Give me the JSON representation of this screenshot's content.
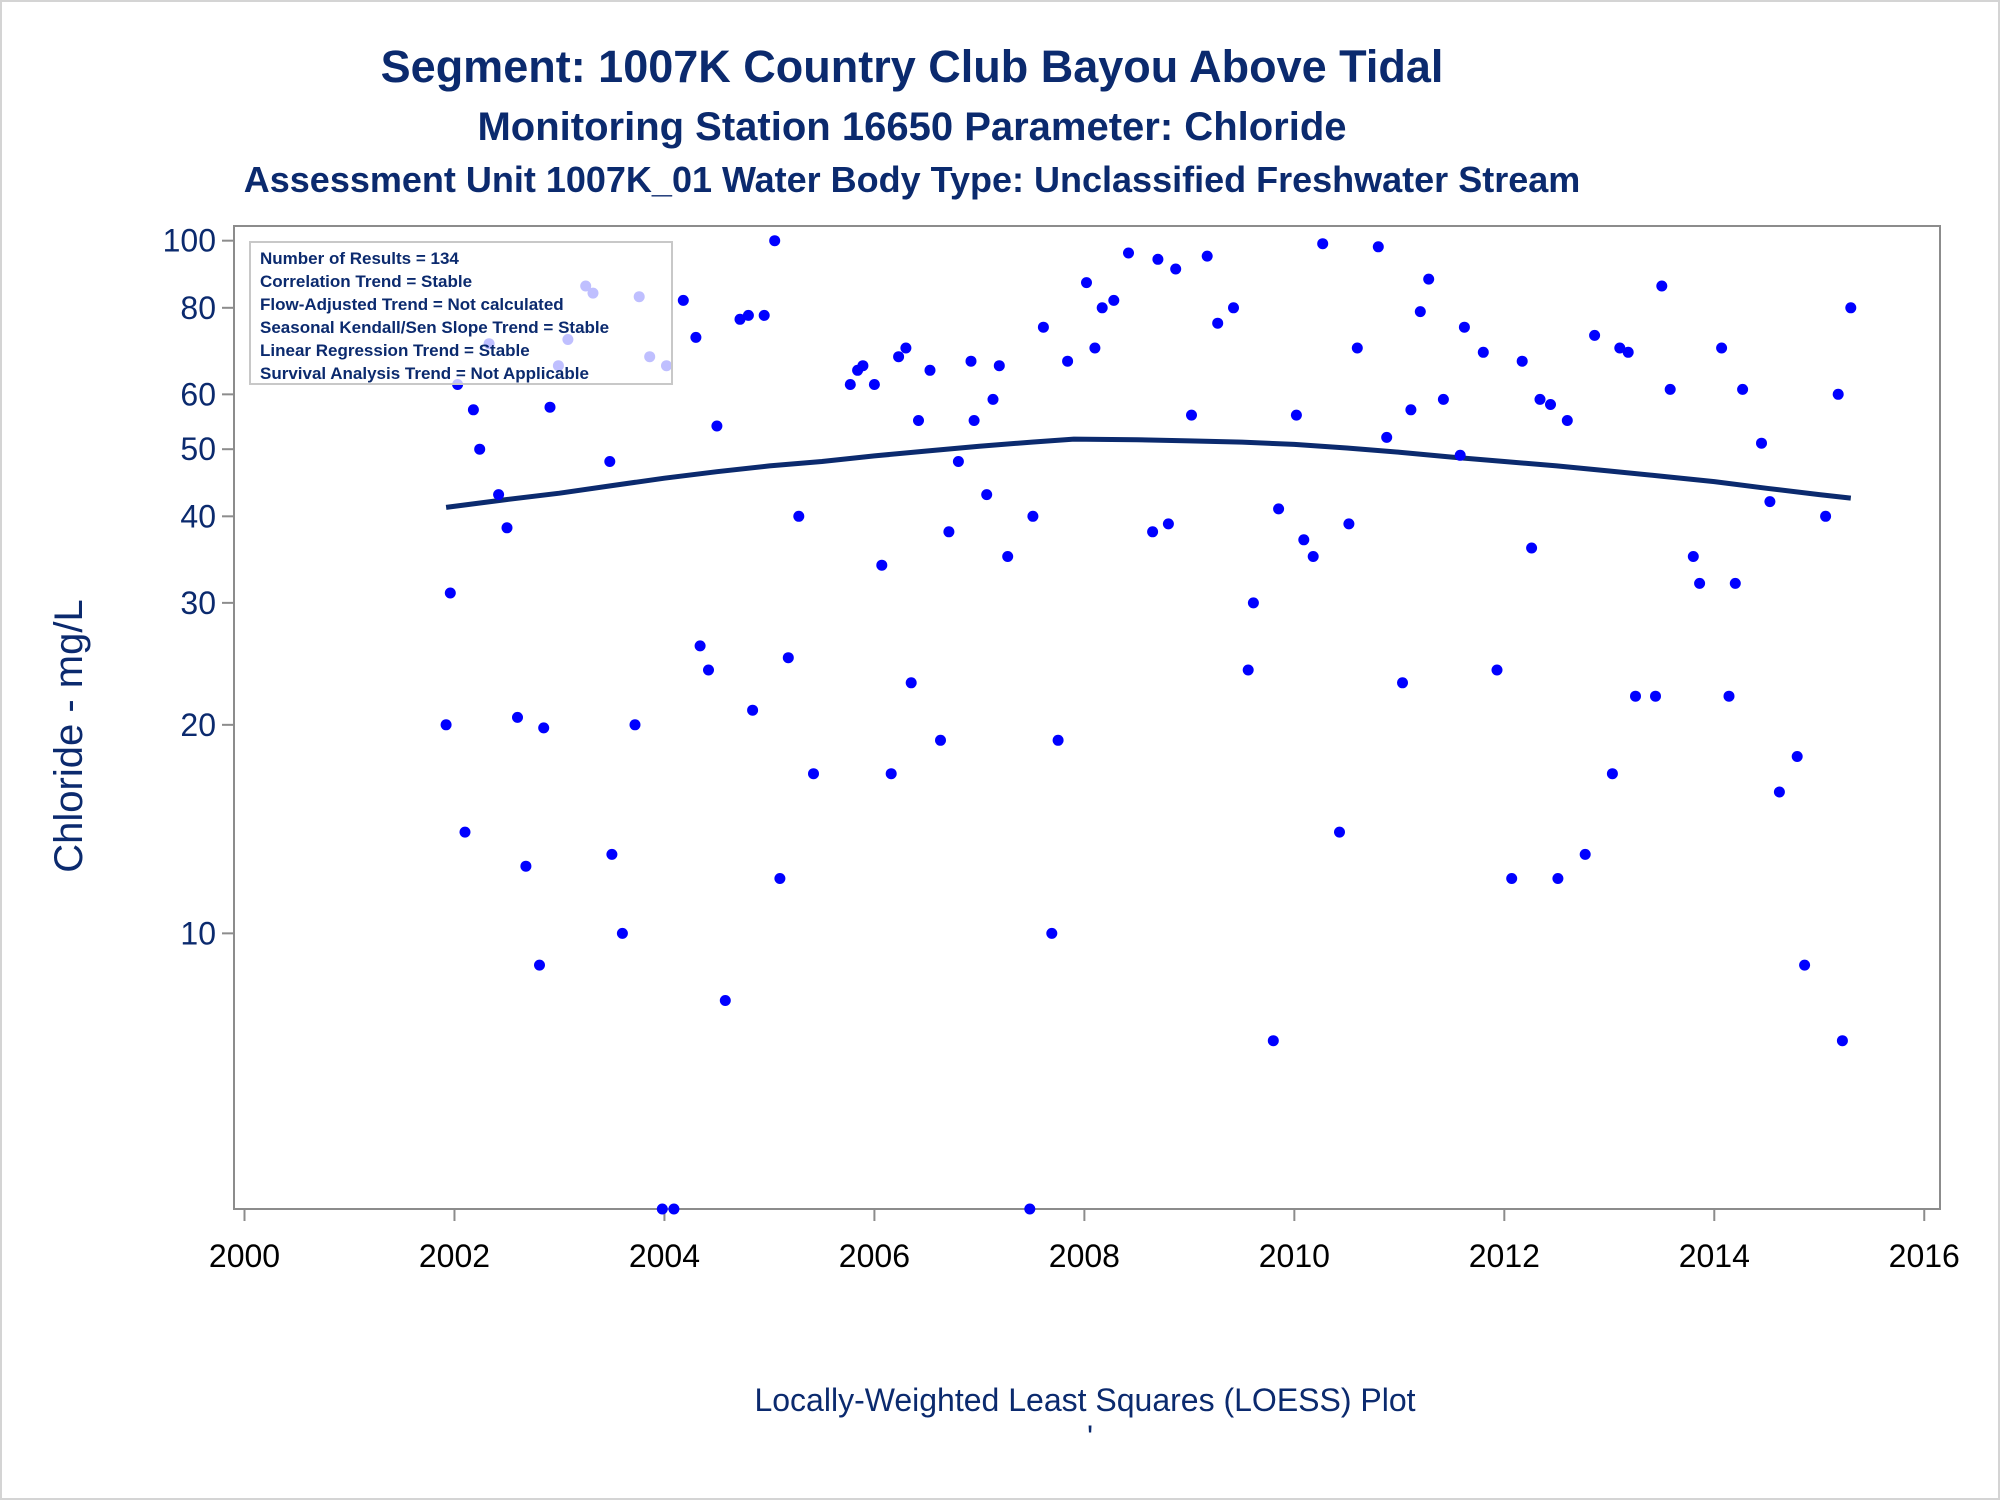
{
  "chart_data": {
    "type": "scatter",
    "title": "Segment: 1007K  Country Club Bayou Above Tidal",
    "subtitle": "Monitoring Station 16650 Parameter: Chloride",
    "subtitle2": "Assessment Unit 1007K_01   Water Body Type: Unclassified Freshwater Stream",
    "ylabel": "Chloride - mg/L",
    "xlabel": "",
    "footnote": "Locally-Weighted Least Squares (LOESS) Plot",
    "footnote_mark": "'",
    "yscale": "log",
    "ylim": [
      4,
      105
    ],
    "xlim": [
      1999.9,
      2016.15
    ],
    "x_ticks": [
      2000,
      2002,
      2004,
      2006,
      2008,
      2010,
      2012,
      2014,
      2016
    ],
    "x_tick_labels": [
      "2000",
      "2002",
      "2004",
      "2006",
      "2008",
      "2010",
      "2012",
      "2014",
      "2016"
    ],
    "y_ticks": [
      10,
      20,
      30,
      40,
      50,
      60,
      80,
      100
    ],
    "y_tick_labels": [
      "10",
      "20",
      "30",
      "40",
      "50",
      "60",
      "80",
      "100"
    ],
    "grid": false,
    "stats_box": {
      "placement": "top-left",
      "lines": [
        "Number of Results = 134",
        "Correlation Trend = Stable",
        "Flow-Adjusted Trend = Not calculated",
        "Seasonal Kendall/Sen Slope Trend = Stable",
        "Linear Regression Trend = Stable",
        "Survival Analysis Trend = Not Applicable"
      ]
    },
    "colors": {
      "points": "#0000ff",
      "trend": "#0b2a6e",
      "text": "#0b2a6e",
      "axis": "#8c8c8c"
    },
    "series": [
      {
        "kind": "points",
        "points": [
          [
            2001.92,
            20
          ],
          [
            2001.96,
            31
          ],
          [
            2002.03,
            62
          ],
          [
            2002.1,
            14
          ],
          [
            2002.18,
            57
          ],
          [
            2002.24,
            50
          ],
          [
            2002.33,
            71
          ],
          [
            2002.42,
            43
          ],
          [
            2002.5,
            38.5
          ],
          [
            2002.6,
            20.5
          ],
          [
            2002.68,
            12.5
          ],
          [
            2002.81,
            9
          ],
          [
            2002.85,
            19.8
          ],
          [
            2002.91,
            57.5
          ],
          [
            2002.99,
            66
          ],
          [
            2003.08,
            72
          ],
          [
            2003.25,
            86
          ],
          [
            2003.32,
            84
          ],
          [
            2003.48,
            48
          ],
          [
            2003.5,
            13
          ],
          [
            2003.6,
            10
          ],
          [
            2003.72,
            20
          ],
          [
            2003.76,
            83
          ],
          [
            2003.86,
            68
          ],
          [
            2003.98,
            4
          ],
          [
            2004.02,
            66
          ],
          [
            2004.09,
            4
          ],
          [
            2004.18,
            82
          ],
          [
            2004.3,
            72.5
          ],
          [
            2004.34,
            26
          ],
          [
            2004.42,
            24
          ],
          [
            2004.5,
            54
          ],
          [
            2004.58,
            8
          ],
          [
            2004.72,
            77
          ],
          [
            2004.8,
            78
          ],
          [
            2004.84,
            21
          ],
          [
            2004.95,
            78
          ],
          [
            2005.05,
            100
          ],
          [
            2005.1,
            12
          ],
          [
            2005.18,
            25
          ],
          [
            2005.28,
            40
          ],
          [
            2005.42,
            17
          ],
          [
            2005.77,
            62
          ],
          [
            2005.84,
            65
          ],
          [
            2005.89,
            66
          ],
          [
            2006.0,
            62
          ],
          [
            2006.07,
            34
          ],
          [
            2006.16,
            17
          ],
          [
            2006.23,
            68
          ],
          [
            2006.3,
            70
          ],
          [
            2006.35,
            23
          ],
          [
            2006.42,
            55
          ],
          [
            2006.53,
            65
          ],
          [
            2006.63,
            19
          ],
          [
            2006.71,
            38
          ],
          [
            2006.8,
            48
          ],
          [
            2006.92,
            67
          ],
          [
            2006.95,
            55
          ],
          [
            2007.07,
            43
          ],
          [
            2007.13,
            59
          ],
          [
            2007.19,
            66
          ],
          [
            2007.27,
            35
          ],
          [
            2007.48,
            4
          ],
          [
            2007.51,
            40
          ],
          [
            2007.61,
            75
          ],
          [
            2007.69,
            10
          ],
          [
            2007.75,
            19
          ],
          [
            2007.84,
            67
          ],
          [
            2008.02,
            87
          ],
          [
            2008.1,
            70
          ],
          [
            2008.17,
            80
          ],
          [
            2008.28,
            82
          ],
          [
            2008.42,
            96
          ],
          [
            2008.65,
            38
          ],
          [
            2008.7,
            94
          ],
          [
            2008.8,
            39
          ],
          [
            2008.87,
            91
          ],
          [
            2009.02,
            56
          ],
          [
            2009.17,
            95
          ],
          [
            2009.27,
            76
          ],
          [
            2009.42,
            80
          ],
          [
            2009.56,
            24
          ],
          [
            2009.61,
            30
          ],
          [
            2009.8,
            7
          ],
          [
            2009.85,
            41
          ],
          [
            2010.02,
            56
          ],
          [
            2010.09,
            37
          ],
          [
            2010.18,
            35
          ],
          [
            2010.27,
            99
          ],
          [
            2010.43,
            14
          ],
          [
            2010.52,
            39
          ],
          [
            2010.6,
            70
          ],
          [
            2010.8,
            98
          ],
          [
            2010.88,
            52
          ],
          [
            2011.03,
            23
          ],
          [
            2011.11,
            57
          ],
          [
            2011.2,
            79
          ],
          [
            2011.28,
            88
          ],
          [
            2011.42,
            59
          ],
          [
            2011.58,
            49
          ],
          [
            2011.62,
            75
          ],
          [
            2011.8,
            69
          ],
          [
            2011.93,
            24
          ],
          [
            2012.07,
            12
          ],
          [
            2012.17,
            67
          ],
          [
            2012.26,
            36
          ],
          [
            2012.34,
            59
          ],
          [
            2012.44,
            58
          ],
          [
            2012.51,
            12
          ],
          [
            2012.6,
            55
          ],
          [
            2012.77,
            13
          ],
          [
            2012.86,
            73
          ],
          [
            2013.03,
            17
          ],
          [
            2013.1,
            70
          ],
          [
            2013.18,
            69
          ],
          [
            2013.25,
            22
          ],
          [
            2013.44,
            22
          ],
          [
            2013.5,
            86
          ],
          [
            2013.58,
            61
          ],
          [
            2013.8,
            35
          ],
          [
            2013.86,
            32
          ],
          [
            2014.07,
            70
          ],
          [
            2014.14,
            22
          ],
          [
            2014.2,
            32
          ],
          [
            2014.27,
            61
          ],
          [
            2014.45,
            51
          ],
          [
            2014.53,
            42
          ],
          [
            2014.62,
            16
          ],
          [
            2014.79,
            18
          ],
          [
            2014.86,
            9
          ],
          [
            2015.06,
            40
          ],
          [
            2015.18,
            60
          ],
          [
            2015.22,
            7
          ],
          [
            2015.3,
            80
          ]
        ]
      },
      {
        "kind": "loess",
        "points": [
          [
            2001.92,
            41.2
          ],
          [
            2002.5,
            42.3
          ],
          [
            2003.0,
            43.2
          ],
          [
            2003.5,
            44.3
          ],
          [
            2004.0,
            45.4
          ],
          [
            2004.5,
            46.4
          ],
          [
            2005.0,
            47.3
          ],
          [
            2005.5,
            48.0
          ],
          [
            2006.0,
            48.9
          ],
          [
            2006.5,
            49.7
          ],
          [
            2007.0,
            50.5
          ],
          [
            2007.5,
            51.2
          ],
          [
            2007.9,
            51.7
          ],
          [
            2008.5,
            51.6
          ],
          [
            2009.0,
            51.4
          ],
          [
            2009.5,
            51.2
          ],
          [
            2010.0,
            50.8
          ],
          [
            2010.5,
            50.2
          ],
          [
            2011.0,
            49.5
          ],
          [
            2011.5,
            48.7
          ],
          [
            2012.0,
            48.0
          ],
          [
            2012.5,
            47.3
          ],
          [
            2013.0,
            46.5
          ],
          [
            2013.5,
            45.7
          ],
          [
            2014.0,
            44.9
          ],
          [
            2014.5,
            43.9
          ],
          [
            2015.0,
            43.0
          ],
          [
            2015.3,
            42.5
          ]
        ]
      }
    ]
  }
}
